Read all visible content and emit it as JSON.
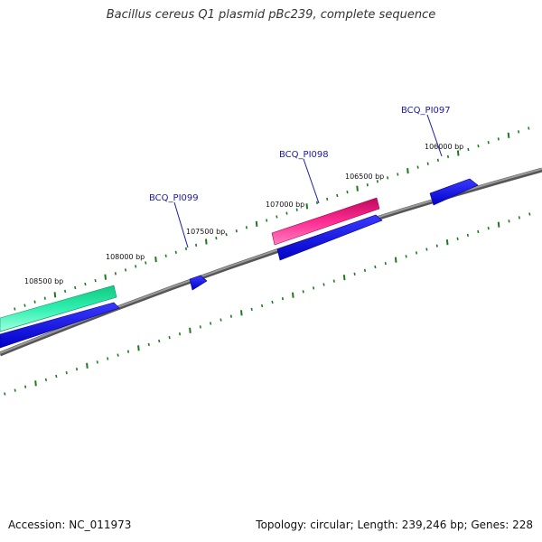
{
  "title": "Bacillus cereus Q1 plasmid pBc239, complete sequence",
  "footer": {
    "accession": "Accession: NC_011973",
    "summary": "Topology: circular; Length: 239,246 bp; Genes: 228"
  },
  "position_labels": [
    "106000 bp",
    "106500 bp",
    "107000 bp",
    "107500 bp",
    "108000 bp",
    "108500 bp"
  ],
  "gene_labels": [
    "BCQ_PI097",
    "BCQ_PI098",
    "BCQ_PI099"
  ],
  "colors": {
    "backbone": "#7a7a7a",
    "ticks": "#1e7a1e",
    "gene_blue": "#1010e0",
    "gene_pink": "#e8107a",
    "gene_green": "#20e8a0",
    "label_blue": "#1a1aa6"
  }
}
